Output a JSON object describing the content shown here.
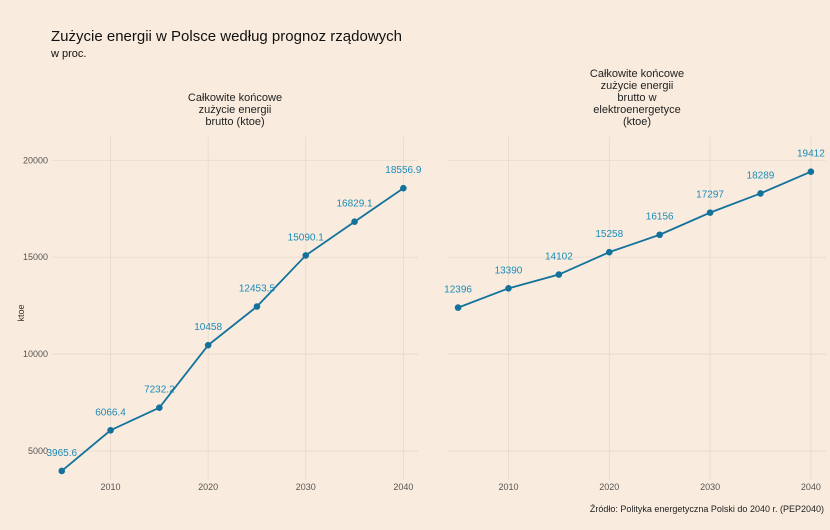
{
  "title": "Zużycie energii w Polsce według prognoz rządowych",
  "subtitle": "w proc.",
  "source": "Źródło: Polityka energetyczna Polski do 2040 r. (PEP2040)",
  "colors": {
    "background": "#f9ecde",
    "series": "#13729c",
    "label": "#1a8bb8"
  },
  "chart_data": {
    "type": "line",
    "ylabel": "ktoe",
    "x": [
      2005,
      2010,
      2015,
      2020,
      2025,
      2030,
      2035,
      2040
    ],
    "x_ticks": [
      2010,
      2020,
      2030,
      2040
    ],
    "y_ticks": [
      5000,
      10000,
      15000,
      20000
    ],
    "xlim": [
      2004,
      2041.5
    ],
    "ylim": [
      3500,
      21200
    ],
    "grid": true,
    "facets": [
      {
        "title_lines": [
          "Całkowite końcowe",
          "zużycie energii",
          "brutto (ktoe)"
        ],
        "values": [
          3965.6,
          6066.4,
          7232.2,
          10458,
          12453.5,
          15090.1,
          16829.1,
          18556.9
        ],
        "labels": [
          "3965.6",
          "6066.4",
          "7232.2",
          "10458",
          "12453.5",
          "15090.1",
          "16829.1",
          "18556.9"
        ]
      },
      {
        "title_lines": [
          "Całkowite końcowe",
          "zużycie energii",
          "brutto w",
          "elektroenergetyce",
          "(ktoe)"
        ],
        "values": [
          12396,
          13390,
          14102,
          15258,
          16156,
          17297,
          18289,
          19412
        ],
        "labels": [
          "12396",
          "13390",
          "14102",
          "15258",
          "16156",
          "17297",
          "18289",
          "19412"
        ]
      }
    ]
  }
}
